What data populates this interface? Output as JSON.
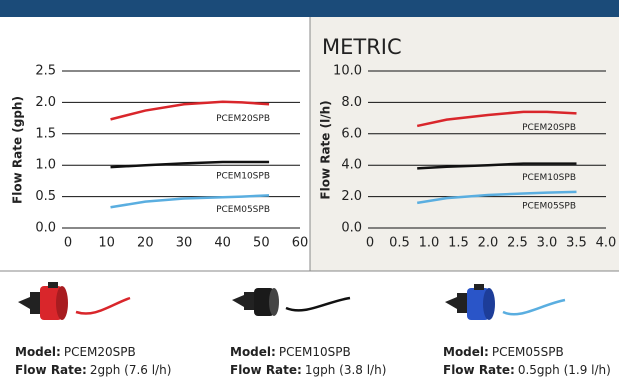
{
  "chart_data": [
    {
      "type": "line",
      "ylabel": "Flow Rate (gph)",
      "xlim": [
        0,
        60
      ],
      "xticks": [
        0,
        10,
        20,
        30,
        40,
        50,
        60
      ],
      "ylim": [
        0,
        2.5
      ],
      "yticks": [
        {
          "value": 0,
          "label": "0.0"
        },
        0.5,
        {
          "value": 1,
          "label": "1.0"
        },
        1.5,
        {
          "value": 2,
          "label": "2.0"
        },
        2.5
      ],
      "grid": true,
      "x": [
        11,
        20,
        30,
        40,
        45,
        52
      ],
      "series": [
        {
          "name": "PCEM20SPB",
          "color": "#d9262b",
          "values": [
            1.73,
            1.87,
            1.97,
            2.01,
            2.0,
            1.97
          ]
        },
        {
          "name": "PCEM10SPB",
          "color": "#111111",
          "values": [
            0.97,
            1.0,
            1.03,
            1.05,
            1.05,
            1.05
          ]
        },
        {
          "name": "PCEM05SPB",
          "color": "#5aaee0",
          "values": [
            0.33,
            0.42,
            0.47,
            0.49,
            0.5,
            0.52
          ]
        }
      ]
    },
    {
      "type": "line",
      "title": "METRIC",
      "ylabel": "Flow Rate (l/h)",
      "xlim": [
        0,
        4
      ],
      "xticks": [
        0,
        0.5,
        {
          "value": 1,
          "label": "1.0"
        },
        1.5,
        {
          "value": 2,
          "label": "2.0"
        },
        2.5,
        {
          "value": 3,
          "label": "3.0"
        },
        3.5,
        {
          "value": 4,
          "label": "4.0"
        }
      ],
      "ylim": [
        0,
        10
      ],
      "yticks": [
        {
          "value": 0,
          "label": "0.0"
        },
        {
          "value": 2,
          "label": "2.0"
        },
        {
          "value": 4,
          "label": "4.0"
        },
        {
          "value": 6,
          "label": "6.0"
        },
        {
          "value": 8,
          "label": "8.0"
        },
        {
          "value": 10,
          "label": "10.0"
        }
      ],
      "grid": true,
      "x": [
        0.8,
        1.3,
        2.0,
        2.6,
        3.0,
        3.5
      ],
      "series": [
        {
          "name": "PCEM20SPB",
          "color": "#d9262b",
          "values": [
            6.5,
            6.9,
            7.2,
            7.4,
            7.4,
            7.3
          ]
        },
        {
          "name": "PCEM10SPB",
          "color": "#111111",
          "values": [
            3.8,
            3.9,
            4.0,
            4.1,
            4.1,
            4.1
          ]
        },
        {
          "name": "PCEM05SPB",
          "color": "#5aaee0",
          "values": [
            1.6,
            1.9,
            2.1,
            2.2,
            2.25,
            2.3
          ]
        }
      ]
    }
  ],
  "products": [
    {
      "model_label": "Model:",
      "model": "PCEM20SPB",
      "rate_label": "Flow Rate:",
      "rate": "2gph (7.6 l/h)"
    },
    {
      "model_label": "Model:",
      "model": "PCEM10SPB",
      "rate_label": "Flow Rate:",
      "rate": "1gph (3.8 l/h)"
    },
    {
      "model_label": "Model:",
      "model": "PCEM05SPB",
      "rate_label": "Flow Rate:",
      "rate": "0.5gph (1.9 l/h)"
    }
  ]
}
